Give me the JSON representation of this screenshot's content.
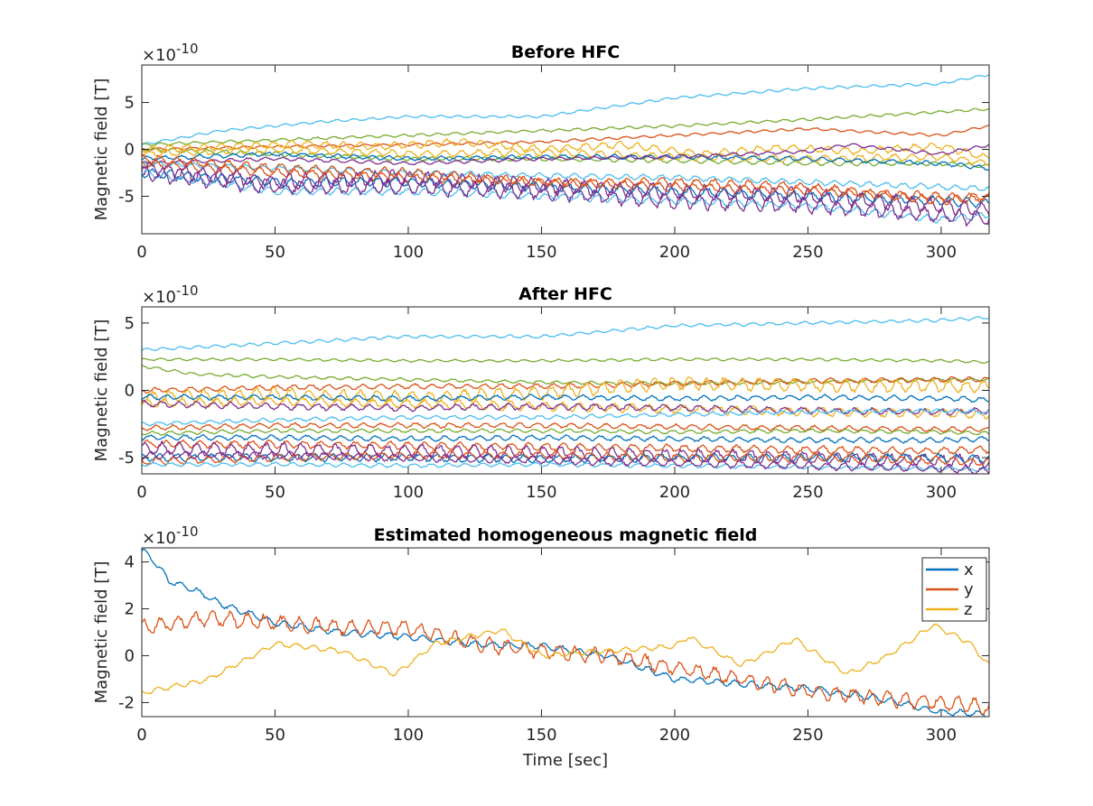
{
  "chart_data": [
    {
      "type": "line",
      "title": "Before HFC",
      "xlabel": "",
      "ylabel": "Magnetic field [T]",
      "exponent_label": "×10",
      "exponent_power": "-10",
      "xlim": [
        0,
        318
      ],
      "ylim": [
        -9,
        9
      ],
      "xticks": [
        0,
        50,
        100,
        150,
        200,
        250,
        300
      ],
      "yticks": [
        -5,
        0,
        5
      ],
      "grid": false,
      "legend": null,
      "series": [
        {
          "color": "#4DBEEE",
          "x": [
            0,
            30,
            50,
            70,
            100,
            150,
            200,
            250,
            300,
            318
          ],
          "values": [
            0.5,
            2.0,
            2.5,
            3.0,
            3.5,
            3.5,
            5.5,
            6.5,
            7.0,
            8.0
          ],
          "noise": 0.15
        },
        {
          "color": "#77AC30",
          "x": [
            0,
            50,
            100,
            150,
            200,
            250,
            300,
            318
          ],
          "values": [
            0.5,
            1.0,
            1.5,
            2.0,
            2.5,
            3.2,
            4.0,
            4.3
          ],
          "noise": 0.15
        },
        {
          "color": "#D95319",
          "x": [
            0,
            50,
            100,
            150,
            200,
            250,
            300,
            318
          ],
          "values": [
            0,
            0.3,
            0.5,
            0.8,
            1.5,
            2.2,
            1.5,
            2.5
          ],
          "noise": 0.15
        },
        {
          "color": "#77AC30",
          "x": [
            0,
            50,
            100,
            150,
            200,
            250,
            300,
            318
          ],
          "values": [
            0,
            -0.5,
            -1.0,
            -1.0,
            -1.2,
            -1.5,
            -1.5,
            -1.8
          ],
          "noise": 0.25
        },
        {
          "color": "#EDB120",
          "x": [
            0,
            30,
            60,
            90,
            120,
            150,
            180,
            210,
            240,
            270,
            300,
            318
          ],
          "values": [
            0,
            0.3,
            0.6,
            0.3,
            0.8,
            0,
            0.5,
            -0.5,
            0.2,
            -0.2,
            0.4,
            -1.0
          ],
          "noise": 0.4
        },
        {
          "color": "#EDB120",
          "x": [
            0,
            50,
            100,
            150,
            200,
            250,
            300,
            318
          ],
          "values": [
            -0.5,
            0,
            -0.5,
            -0.3,
            -0.8,
            -1.0,
            -0.8,
            -1.5
          ],
          "noise": 0.4
        },
        {
          "color": "#0072BD",
          "x": [
            0,
            50,
            100,
            150,
            200,
            250,
            300,
            318
          ],
          "values": [
            -1.0,
            -0.5,
            -1.0,
            -0.8,
            -0.8,
            -1.0,
            -1.5,
            -2.0
          ],
          "noise": 0.25
        },
        {
          "color": "#7E2F8E",
          "x": [
            0,
            50,
            100,
            150,
            200,
            250,
            265,
            300,
            318
          ],
          "values": [
            -1.5,
            -1.0,
            -1.5,
            -1.0,
            -0.8,
            -0.2,
            0.5,
            -0.5,
            0.5
          ],
          "noise": 0.2
        },
        {
          "color": "#4DBEEE",
          "x": [
            0,
            50,
            100,
            150,
            200,
            250,
            300,
            318
          ],
          "values": [
            -1.5,
            -2.0,
            -2.5,
            -2.8,
            -3.0,
            -3.5,
            -4.0,
            -4.2
          ],
          "noise": 0.3
        },
        {
          "color": "#D95319",
          "x": [
            0,
            50,
            100,
            150,
            200,
            250,
            300,
            318
          ],
          "values": [
            -1.5,
            -2.5,
            -3.0,
            -3.5,
            -4.0,
            -4.5,
            -5.0,
            -5.2
          ],
          "noise": 0.5
        },
        {
          "color": "#0072BD",
          "x": [
            0,
            50,
            100,
            150,
            200,
            250,
            300,
            318
          ],
          "values": [
            -2.5,
            -3.5,
            -3.5,
            -4.0,
            -4.5,
            -5.0,
            -5.5,
            -5.8
          ],
          "noise": 0.5
        },
        {
          "color": "#7E2F8E",
          "x": [
            0,
            50,
            100,
            150,
            200,
            250,
            300,
            318
          ],
          "values": [
            -2.0,
            -3.5,
            -3.0,
            -4.0,
            -4.5,
            -5.0,
            -6.0,
            -6.5
          ],
          "noise": 0.9
        },
        {
          "color": "#4DBEEE",
          "x": [
            0,
            50,
            100,
            150,
            200,
            250,
            300,
            318
          ],
          "values": [
            -2.5,
            -4.5,
            -4.5,
            -5.0,
            -5.5,
            -6.0,
            -7.5,
            -7.0
          ],
          "noise": 0.4
        },
        {
          "color": "#7E2F8E",
          "x": [
            0,
            50,
            100,
            150,
            200,
            250,
            300,
            318
          ],
          "values": [
            -2.5,
            -4.0,
            -4.0,
            -4.5,
            -5.5,
            -6.0,
            -7.0,
            -7.5
          ],
          "noise": 0.9
        },
        {
          "color": "#D95319",
          "x": [
            0,
            50,
            100,
            150,
            200,
            250,
            300,
            318
          ],
          "values": [
            -1.0,
            -2.0,
            -2.5,
            -3.5,
            -3.5,
            -4.0,
            -5.5,
            -5.0
          ],
          "noise": 0.5
        }
      ]
    },
    {
      "type": "line",
      "title": "After HFC",
      "xlabel": "",
      "ylabel": "Magnetic field [T]",
      "exponent_label": "×10",
      "exponent_power": "-10",
      "xlim": [
        0,
        318
      ],
      "ylim": [
        -6.2,
        6.2
      ],
      "xticks": [
        0,
        50,
        100,
        150,
        200,
        250,
        300
      ],
      "yticks": [
        -5,
        0,
        5
      ],
      "grid": false,
      "legend": null,
      "series": [
        {
          "color": "#4DBEEE",
          "x": [
            0,
            50,
            100,
            150,
            200,
            250,
            300,
            318
          ],
          "values": [
            3.0,
            3.5,
            4.0,
            4.0,
            4.8,
            5.0,
            5.2,
            5.4
          ],
          "noise": 0.12
        },
        {
          "color": "#77AC30",
          "x": [
            0,
            50,
            100,
            150,
            200,
            250,
            300,
            318
          ],
          "values": [
            2.3,
            2.3,
            2.2,
            2.2,
            2.3,
            2.3,
            2.2,
            2.1
          ],
          "noise": 0.1
        },
        {
          "color": "#77AC30",
          "x": [
            0,
            20,
            50,
            100,
            150,
            200,
            250,
            300,
            318
          ],
          "values": [
            1.8,
            1.2,
            1.0,
            0.8,
            0.6,
            0.5,
            0.6,
            0.8,
            0.8
          ],
          "noise": 0.12
        },
        {
          "color": "#D95319",
          "x": [
            0,
            50,
            100,
            150,
            200,
            250,
            300,
            318
          ],
          "values": [
            0,
            0.2,
            0.3,
            0.3,
            0.5,
            0.7,
            0.8,
            0.8
          ],
          "noise": 0.2
        },
        {
          "color": "#EDB120",
          "x": [
            0,
            50,
            100,
            150,
            180,
            200,
            250,
            300,
            318
          ],
          "values": [
            -0.5,
            -0.3,
            -0.5,
            -0.2,
            0.3,
            0.5,
            0.4,
            0.3,
            0.2
          ],
          "noise": 0.5
        },
        {
          "color": "#0072BD",
          "x": [
            0,
            50,
            100,
            150,
            200,
            250,
            300,
            318
          ],
          "values": [
            -0.5,
            -0.5,
            -0.6,
            -0.5,
            -0.6,
            -0.5,
            -0.6,
            -0.7
          ],
          "noise": 0.2
        },
        {
          "color": "#EDB120",
          "x": [
            0,
            50,
            100,
            150,
            200,
            250,
            300,
            318
          ],
          "values": [
            -1.0,
            -0.8,
            -1.0,
            -1.2,
            -1.4,
            -1.6,
            -1.7,
            -1.8
          ],
          "noise": 0.35
        },
        {
          "color": "#7E2F8E",
          "x": [
            0,
            50,
            100,
            150,
            200,
            250,
            300,
            318
          ],
          "values": [
            -1.0,
            -1.2,
            -1.3,
            -1.2,
            -1.3,
            -1.5,
            -1.6,
            -1.5
          ],
          "noise": 0.25
        },
        {
          "color": "#4DBEEE",
          "x": [
            0,
            50,
            100,
            150,
            200,
            250,
            300,
            318
          ],
          "values": [
            -2.5,
            -2.2,
            -2.0,
            -2.0,
            -1.8,
            -1.6,
            -1.5,
            -1.6
          ],
          "noise": 0.15
        },
        {
          "color": "#D95319",
          "x": [
            0,
            50,
            100,
            150,
            200,
            250,
            300,
            318
          ],
          "values": [
            -2.8,
            -2.6,
            -2.6,
            -2.6,
            -2.7,
            -2.8,
            -2.9,
            -2.9
          ],
          "noise": 0.2
        },
        {
          "color": "#77AC30",
          "x": [
            0,
            50,
            100,
            150,
            200,
            250,
            300,
            318
          ],
          "values": [
            -3.2,
            -3.0,
            -3.0,
            -3.0,
            -3.1,
            -3.0,
            -3.1,
            -3.2
          ],
          "noise": 0.15
        },
        {
          "color": "#0072BD",
          "x": [
            0,
            50,
            100,
            150,
            200,
            250,
            300,
            318
          ],
          "values": [
            -3.5,
            -3.5,
            -3.6,
            -3.5,
            -3.6,
            -3.7,
            -3.7,
            -3.6
          ],
          "noise": 0.2
        },
        {
          "color": "#D95319",
          "x": [
            0,
            50,
            100,
            150,
            200,
            250,
            300,
            318
          ],
          "values": [
            -4.0,
            -4.0,
            -4.1,
            -4.2,
            -4.3,
            -4.4,
            -4.5,
            -4.4
          ],
          "noise": 0.3
        },
        {
          "color": "#7E2F8E",
          "x": [
            0,
            50,
            100,
            150,
            200,
            250,
            300,
            318
          ],
          "values": [
            -4.3,
            -4.4,
            -4.5,
            -4.6,
            -4.8,
            -5.0,
            -5.2,
            -5.3
          ],
          "noise": 0.5
        },
        {
          "color": "#0072BD",
          "x": [
            0,
            50,
            100,
            150,
            200,
            250,
            300,
            318
          ],
          "values": [
            -5.0,
            -5.0,
            -5.0,
            -5.1,
            -5.0,
            -5.0,
            -5.0,
            -5.1
          ],
          "noise": 0.3
        },
        {
          "color": "#D95319",
          "x": [
            0,
            50,
            100,
            150,
            200,
            250,
            300,
            318
          ],
          "values": [
            -5.3,
            -5.0,
            -4.8,
            -4.8,
            -5.0,
            -5.0,
            -5.2,
            -5.4
          ],
          "noise": 0.3
        },
        {
          "color": "#4DBEEE",
          "x": [
            0,
            50,
            100,
            150,
            200,
            250,
            300,
            318
          ],
          "values": [
            -5.5,
            -5.5,
            -5.6,
            -5.5,
            -5.6,
            -5.7,
            -5.8,
            -5.9
          ],
          "noise": 0.15
        },
        {
          "color": "#7E2F8E",
          "x": [
            0,
            50,
            100,
            150,
            200,
            250,
            300,
            318
          ],
          "values": [
            -4.8,
            -4.8,
            -5.0,
            -5.2,
            -5.4,
            -5.6,
            -5.8,
            -6.0
          ],
          "noise": 0.3
        }
      ]
    },
    {
      "type": "line",
      "title": "Estimated homogeneous magnetic field",
      "xlabel": "Time [sec]",
      "ylabel": "Magnetic field [T]",
      "exponent_label": "×10",
      "exponent_power": "-10",
      "xlim": [
        0,
        318
      ],
      "ylim": [
        -2.6,
        4.6
      ],
      "xticks": [
        0,
        50,
        100,
        150,
        200,
        250,
        300
      ],
      "yticks": [
        -2,
        0,
        2,
        4
      ],
      "grid": false,
      "legend": {
        "placement": "top-right",
        "entries": [
          "x",
          "y",
          "z"
        ]
      },
      "series": [
        {
          "name": "x",
          "color": "#0072BD",
          "x": [
            0,
            5,
            10,
            20,
            30,
            40,
            50,
            75,
            100,
            125,
            150,
            175,
            200,
            225,
            250,
            275,
            300,
            318
          ],
          "values": [
            4.5,
            4.0,
            3.2,
            2.8,
            2.2,
            1.8,
            1.4,
            1.0,
            0.8,
            0.5,
            0.4,
            0.0,
            -1.0,
            -1.2,
            -1.4,
            -1.8,
            -2.4,
            -2.5
          ],
          "noise": 0.15
        },
        {
          "name": "y",
          "color": "#D95319",
          "x": [
            0,
            25,
            50,
            75,
            100,
            125,
            150,
            175,
            200,
            225,
            250,
            275,
            300,
            318
          ],
          "values": [
            1.2,
            1.6,
            1.4,
            1.2,
            1.2,
            0.5,
            0.2,
            0.0,
            -0.5,
            -1.0,
            -1.5,
            -1.8,
            -2.0,
            -2.2
          ],
          "noise": 0.35
        },
        {
          "name": "z",
          "color": "#EDB120",
          "x": [
            0,
            25,
            50,
            60,
            75,
            95,
            110,
            135,
            150,
            175,
            200,
            205,
            225,
            245,
            265,
            280,
            297,
            310,
            318
          ],
          "values": [
            -1.6,
            -1.0,
            0.5,
            0.4,
            0.2,
            -0.8,
            0.5,
            1.1,
            0.0,
            0.2,
            0.4,
            0.8,
            -0.4,
            0.7,
            -0.8,
            0.0,
            1.3,
            0.6,
            -0.4
          ],
          "noise": 0.12
        }
      ]
    }
  ]
}
